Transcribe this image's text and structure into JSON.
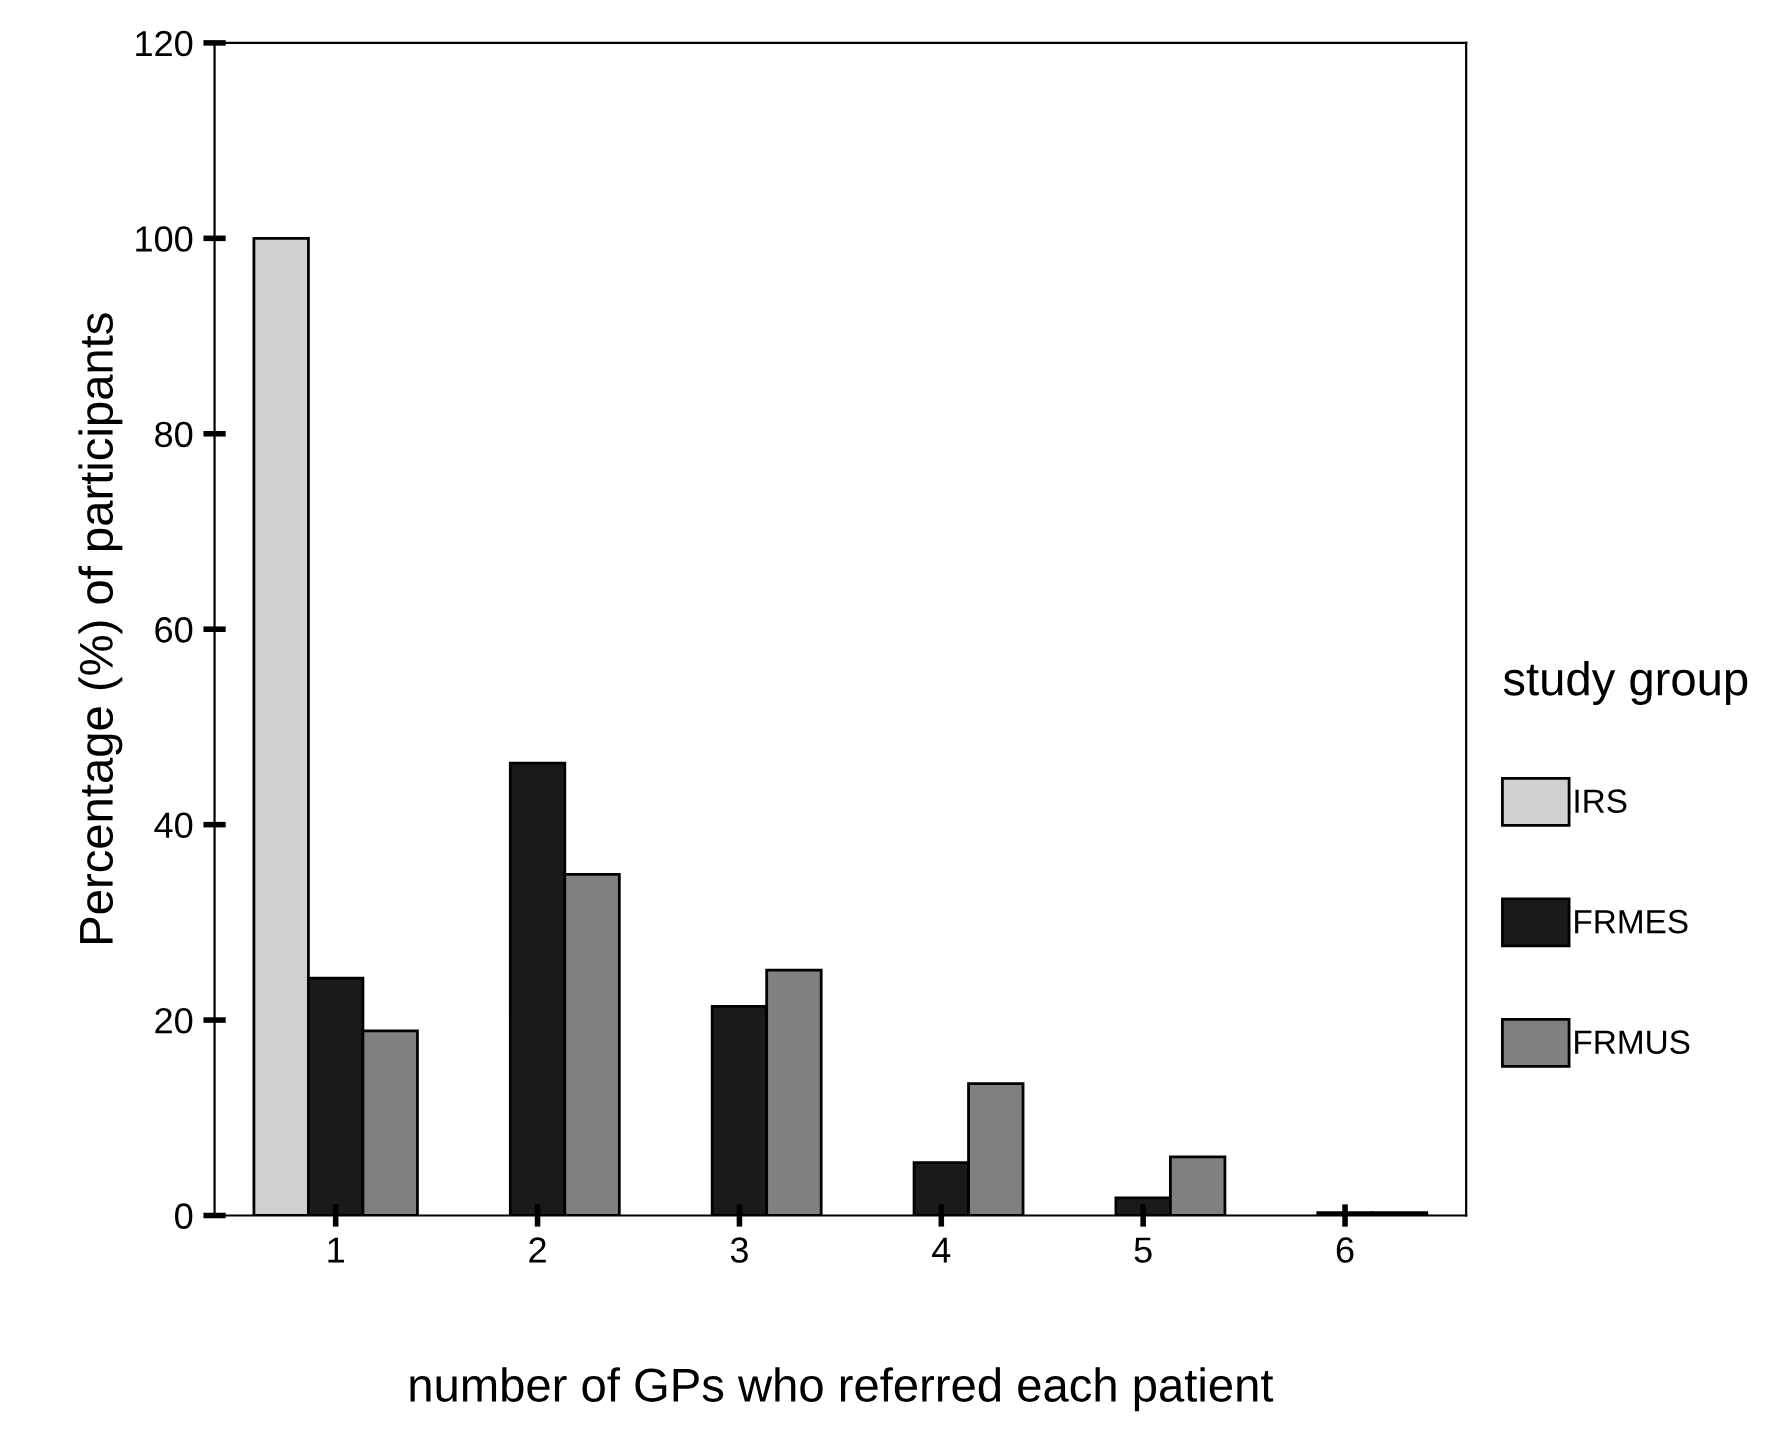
{
  "chart_data": {
    "type": "bar",
    "xlabel": "number of GPs who referred each patient",
    "ylabel": "Percentage (%) of participants",
    "legend_title": "study group",
    "categories": [
      "1",
      "2",
      "3",
      "4",
      "5",
      "6"
    ],
    "series": [
      {
        "name": "IRS",
        "color": "#d0d0d0",
        "values": [
          100,
          null,
          null,
          null,
          null,
          null
        ]
      },
      {
        "name": "FRMES",
        "color": "#1a1a1a",
        "values": [
          24.3,
          46.3,
          21.4,
          5.4,
          1.8,
          0.3
        ]
      },
      {
        "name": "FRMUS",
        "color": "#808080",
        "values": [
          18.9,
          34.9,
          25.1,
          13.5,
          6.0,
          0.3
        ]
      }
    ],
    "ylim": [
      0,
      120
    ],
    "yticks": [
      0,
      20,
      40,
      60,
      80,
      100,
      120
    ],
    "grid": false,
    "legend": "right"
  }
}
